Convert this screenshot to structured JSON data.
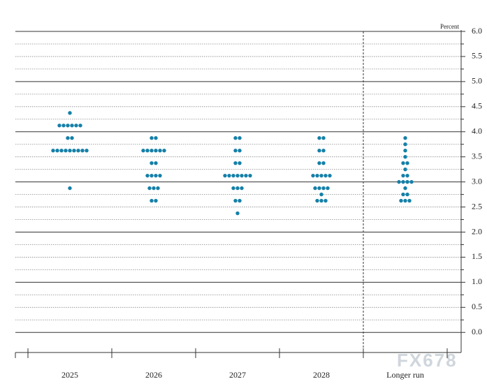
{
  "chart_data": {
    "type": "dot",
    "unit_label": "Percent",
    "watermark": "FX678",
    "categories": [
      "2025",
      "2026",
      "2027",
      "2028",
      "Longer run"
    ],
    "color": "#1580a8",
    "dots": [
      [
        {
          "value": 4.375,
          "count": 1
        },
        {
          "value": 4.125,
          "count": 6
        },
        {
          "value": 3.875,
          "count": 2
        },
        {
          "value": 3.625,
          "count": 9
        },
        {
          "value": 2.875,
          "count": 1
        }
      ],
      [
        {
          "value": 3.875,
          "count": 2
        },
        {
          "value": 3.625,
          "count": 6
        },
        {
          "value": 3.375,
          "count": 2
        },
        {
          "value": 3.125,
          "count": 4
        },
        {
          "value": 2.875,
          "count": 3
        },
        {
          "value": 2.625,
          "count": 2
        }
      ],
      [
        {
          "value": 3.875,
          "count": 2
        },
        {
          "value": 3.625,
          "count": 2
        },
        {
          "value": 3.375,
          "count": 2
        },
        {
          "value": 3.125,
          "count": 7
        },
        {
          "value": 2.875,
          "count": 3
        },
        {
          "value": 2.625,
          "count": 2
        },
        {
          "value": 2.375,
          "count": 1
        }
      ],
      [
        {
          "value": 3.875,
          "count": 2
        },
        {
          "value": 3.625,
          "count": 2
        },
        {
          "value": 3.375,
          "count": 2
        },
        {
          "value": 3.125,
          "count": 5
        },
        {
          "value": 2.875,
          "count": 4
        },
        {
          "value": 2.75,
          "count": 1
        },
        {
          "value": 2.625,
          "count": 3
        }
      ],
      [
        {
          "value": 3.875,
          "count": 1
        },
        {
          "value": 3.75,
          "count": 1
        },
        {
          "value": 3.625,
          "count": 1
        },
        {
          "value": 3.5,
          "count": 1
        },
        {
          "value": 3.375,
          "count": 2
        },
        {
          "value": 3.25,
          "count": 1
        },
        {
          "value": 3.125,
          "count": 2
        },
        {
          "value": 3.0,
          "count": 4
        },
        {
          "value": 2.875,
          "count": 1
        },
        {
          "value": 2.75,
          "count": 2
        },
        {
          "value": 2.625,
          "count": 3
        }
      ]
    ],
    "ylim": [
      -0.4,
      6.0
    ],
    "yticks": [
      {
        "value": 0,
        "label": "0.0"
      },
      0.5,
      {
        "value": 1,
        "label": "1.0"
      },
      1.5,
      {
        "value": 2,
        "label": "2.0"
      },
      2.5,
      {
        "value": 3,
        "label": "3.0"
      },
      3.5,
      {
        "value": 4,
        "label": "4.0"
      },
      4.5,
      {
        "value": 5,
        "label": "5.0"
      },
      5.5,
      {
        "value": 6,
        "label": "6.0"
      }
    ],
    "minor_yticks": [
      0.25,
      0.75,
      1.25,
      1.75,
      2.25,
      2.75,
      3.25,
      3.75,
      4.25,
      4.75,
      5.25,
      5.75
    ],
    "grid": true
  }
}
